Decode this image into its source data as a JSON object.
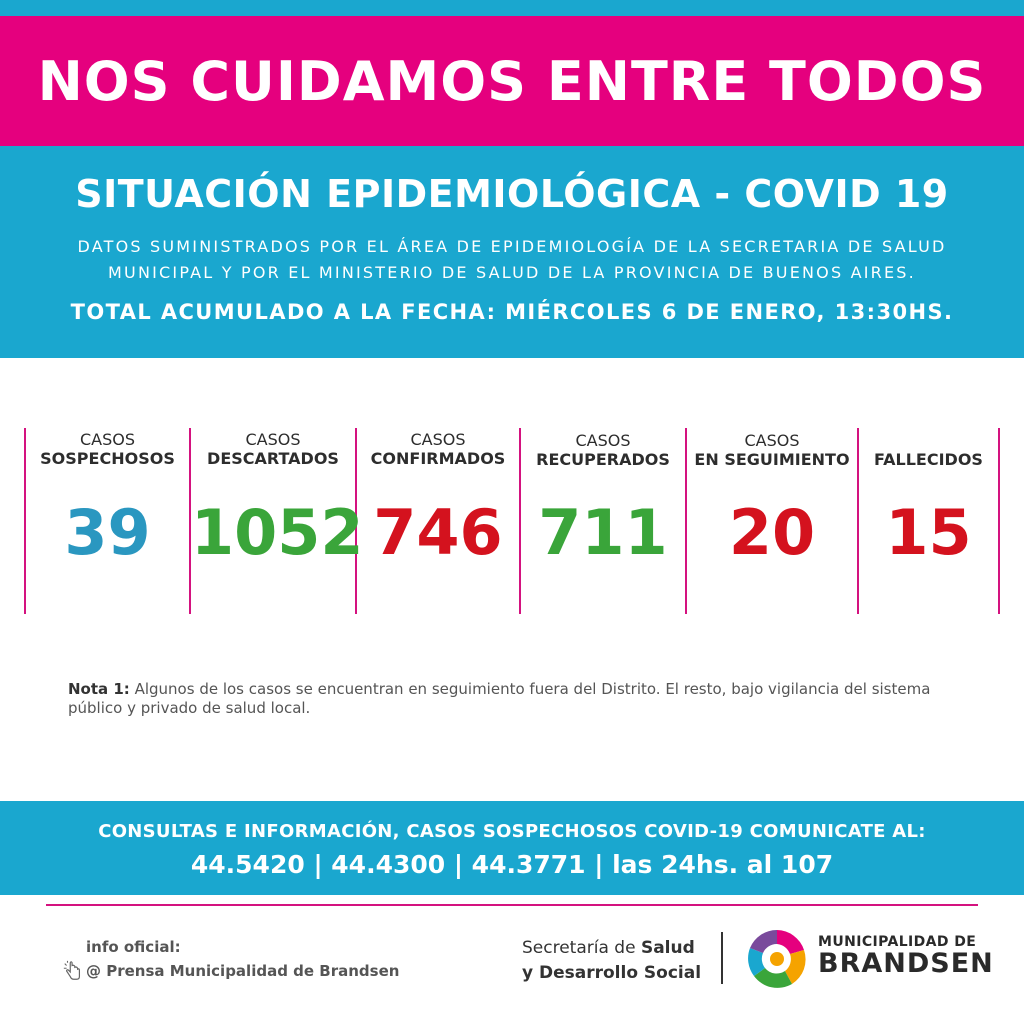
{
  "banner": {
    "title": "NOS CUIDAMOS ENTRE TODOS"
  },
  "info": {
    "title": "SITUACIÓN EPIDEMIOLÓGICA - COVID 19",
    "source_line1": "DATOS SUMINISTRADOS POR EL ÁREA DE EPIDEMIOLOGÍA DE LA SECRETARIA DE SALUD",
    "source_line2": "MUNICIPAL Y POR EL MINISTERIO DE SALUD DE LA PROVINCIA DE BUENOS AIRES.",
    "total_date": "TOTAL ACUMULADO A LA FECHA: MIÉRCOLES 6 DE ENERO, 13:30HS."
  },
  "stats": [
    {
      "label1": "CASOS",
      "label2": "SOSPECHOSOS",
      "value": "39",
      "color": "#2a97c0"
    },
    {
      "label1": "CASOS",
      "label2": "DESCARTADOS",
      "value": "1052",
      "color": "#3aa53a"
    },
    {
      "label1": "CASOS",
      "label2": "CONFIRMADOS",
      "value": "746",
      "color": "#d4121e"
    },
    {
      "label1": "CASOS",
      "label2": "RECUPERADOS",
      "value": "711",
      "color": "#3aa53a"
    },
    {
      "label1": "CASOS",
      "label2": "EN SEGUIMIENTO",
      "value": "20",
      "color": "#d4121e"
    },
    {
      "label1": "",
      "label2": "FALLECIDOS",
      "value": "15",
      "color": "#d4121e"
    }
  ],
  "note": {
    "label": "Nota 1:",
    "text": "Algunos de los casos se encuentran en seguimiento fuera del Distrito. El resto, bajo vigilancia del sistema público y privado de salud local."
  },
  "contact": {
    "line1": "CONSULTAS E INFORMACIÓN, CASOS SOSPECHOSOS COVID-19 COMUNICATE AL:",
    "line2": "44.5420 | 44.4300 | 44.3771 | las 24hs. al 107"
  },
  "footer": {
    "official_title": "info oficial:",
    "official_handle": "@ Prensa Municipalidad de Brandsen",
    "sec_pre1": "Secretaría de ",
    "sec_bold1": "Salud",
    "sec_line2": "y Desarrollo Social",
    "muni_line1": "MUNICIPALIDAD DE",
    "muni_line2": "BRANDSEN"
  },
  "colors": {
    "pink": "#e5007e",
    "blue": "#1aa7cf",
    "green": "#3aa53a",
    "red": "#d4121e",
    "teal": "#2a97c0"
  },
  "icons": {
    "official": "hand-cursor-icon",
    "logo": "municipal-logo-icon"
  }
}
